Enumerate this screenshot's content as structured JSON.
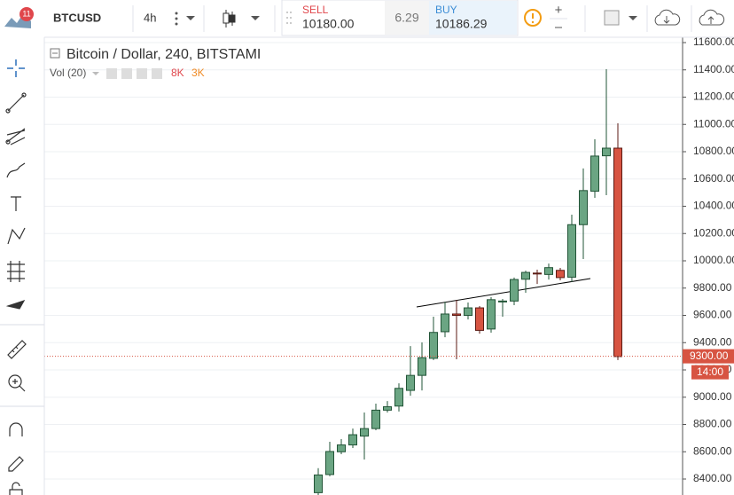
{
  "toolbar": {
    "symbol": "BTCUSD",
    "interval": "4h",
    "sell_label": "SELL",
    "sell_price": "10180.00",
    "spread": "6.29",
    "buy_label": "BUY",
    "buy_price": "10186.29",
    "alerts_badge": "11"
  },
  "chart_data": {
    "type": "candlestick",
    "title": "Bitcoin / Dollar, 240, BITSTAMI",
    "indicator": "Vol (20)",
    "indicator_values": [
      "8K",
      "3K"
    ],
    "categories": [
      null,
      null,
      null,
      null,
      null,
      null,
      null,
      null,
      null,
      null,
      null,
      null,
      null,
      null,
      null,
      null,
      null,
      null,
      null,
      null,
      null,
      null,
      null,
      null,
      null,
      null,
      null
    ],
    "open": [
      8300,
      8433,
      8600,
      8650,
      8715,
      8770,
      8905,
      8935,
      9050,
      9160,
      9285,
      9480,
      9610,
      9600,
      9655,
      9500,
      9700,
      9705,
      9865,
      9910,
      9900,
      9930,
      9880,
      10265,
      10510,
      10770,
      10826
    ],
    "high": [
      8480,
      8673,
      8693,
      8770,
      8888,
      8953,
      8972,
      9102,
      9375,
      9402,
      9590,
      9700,
      9714,
      9694,
      9668,
      9733,
      9720,
      9877,
      9928,
      9935,
      9980,
      9948,
      10338,
      10677,
      10891,
      11405,
      11008
    ],
    "low": [
      8280,
      8420,
      8582,
      8628,
      8543,
      8758,
      8888,
      8895,
      9011,
      9050,
      9272,
      9440,
      9278,
      9570,
      9466,
      9473,
      9590,
      9675,
      9766,
      9830,
      9863,
      9857,
      9844,
      10013,
      10462,
      10481,
      9272
    ],
    "close": [
      8430,
      8602,
      8650,
      8725,
      8770,
      8905,
      8930,
      9065,
      9160,
      9290,
      9475,
      9610,
      9600,
      9655,
      9490,
      9715,
      9705,
      9863,
      9915,
      9905,
      9950,
      9877,
      10265,
      10515,
      10768,
      10826,
      9298
    ],
    "up_color": "#6ba583",
    "up_border": "#225437",
    "down_color": "#d75442",
    "down_border": "#5b1a13",
    "ylim": [
      8283,
      11639
    ],
    "yticks": [
      {
        "value": 8400,
        "label": "8400.00"
      },
      {
        "value": 8600,
        "label": "8600.00"
      },
      {
        "value": 8800,
        "label": "8800.00"
      },
      {
        "value": 9000,
        "label": "9000.00"
      },
      {
        "value": 9200,
        "label": "9200.00"
      },
      {
        "value": 9400,
        "label": "9400.00"
      },
      {
        "value": 9600,
        "label": "9600.00"
      },
      {
        "value": 9800,
        "label": "9800.00"
      },
      {
        "value": 10000,
        "label": "10000.00"
      },
      {
        "value": 10200,
        "label": "10200.00"
      },
      {
        "value": 10400,
        "label": "10400.00"
      },
      {
        "value": 10600,
        "label": "10600.00"
      },
      {
        "value": 10800,
        "label": "10800.00"
      },
      {
        "value": 11000,
        "label": "11000.00"
      },
      {
        "value": 11200,
        "label": "11200.00"
      },
      {
        "value": 11400,
        "label": "11400.00"
      },
      {
        "value": 11600,
        "label": "11600.00"
      }
    ],
    "grid": true,
    "last_price": {
      "value": 9300,
      "label": "9300.00"
    },
    "countdown": "14:00",
    "last_price_color": "#d75442"
  }
}
